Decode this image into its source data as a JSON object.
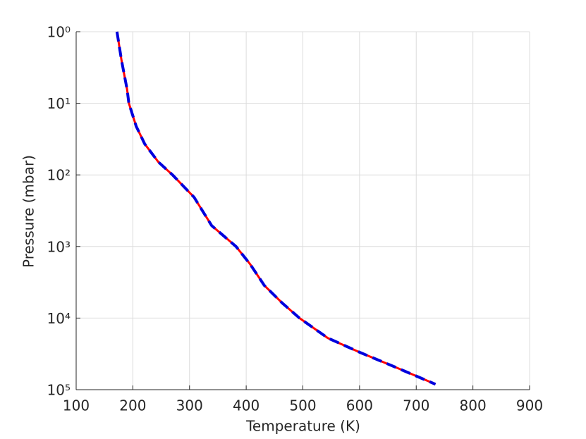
{
  "chart_data": {
    "type": "line",
    "xlabel": "Temperature (K)",
    "ylabel": "Pressure (mbar)",
    "x": [
      172,
      180,
      190,
      193,
      206,
      221,
      245,
      270,
      308,
      339,
      382,
      407,
      432,
      463,
      494,
      544,
      600,
      662,
      734
    ],
    "series": [
      {
        "color": "#ff0000",
        "dash": false,
        "values": [
          1,
          2.5,
          6.5,
          10,
          21,
          37,
          66,
          100,
          205,
          510,
          1000,
          1770,
          3500,
          6100,
          10000,
          19000,
          30000,
          48000,
          84000
        ]
      },
      {
        "color": "#0000dd",
        "dash": true,
        "values": [
          1,
          2.5,
          6.5,
          10,
          21,
          37,
          66,
          100,
          205,
          510,
          1000,
          1770,
          3500,
          6100,
          10000,
          19000,
          30000,
          48000,
          84000
        ]
      }
    ],
    "xlim": [
      100,
      900
    ],
    "xticks": [
      100,
      200,
      300,
      400,
      500,
      600,
      700,
      800,
      900
    ],
    "ylim": [
      1,
      100000
    ],
    "ylog": true,
    "yreverse": true,
    "yticks": [
      {
        "value": 1,
        "label": "10⁰"
      },
      {
        "value": 10,
        "label": "10¹"
      },
      {
        "value": 100,
        "label": "10²"
      },
      {
        "value": 1000,
        "label": "10³"
      },
      {
        "value": 10000,
        "label": "10⁴"
      },
      {
        "value": 100000,
        "label": "10⁵"
      }
    ],
    "grid": true
  }
}
